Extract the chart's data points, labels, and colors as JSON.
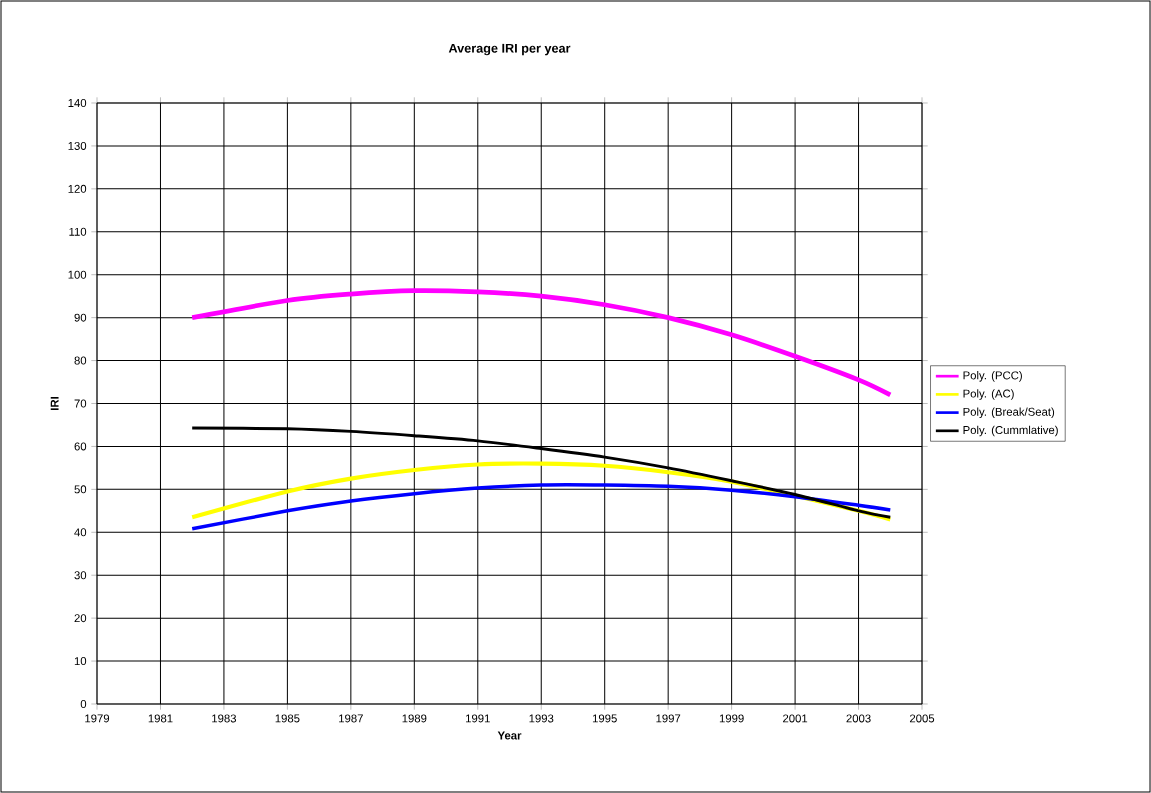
{
  "chart_data": {
    "type": "line",
    "title": "Average IRI per year",
    "xlabel": "Year",
    "ylabel": "IRI",
    "xlim": [
      1979,
      2005
    ],
    "xticks": [
      1979,
      1981,
      1983,
      1985,
      1987,
      1989,
      1991,
      1993,
      1995,
      1997,
      1999,
      2001,
      2003,
      2005
    ],
    "ylim": [
      0,
      140
    ],
    "yticks": [
      0,
      10,
      20,
      30,
      40,
      50,
      60,
      70,
      80,
      90,
      100,
      110,
      120,
      130,
      140
    ],
    "grid": true,
    "legend": "right",
    "line_style": "solid",
    "x": [
      1982,
      1985,
      1987,
      1989,
      1991,
      1993,
      1995,
      1997,
      1999,
      2001,
      2003,
      2004
    ],
    "series": [
      {
        "name": "Poly. (PCC)",
        "color": "#ff00ff",
        "values": [
          90,
          94,
          95.5,
          96.3,
          96,
          95,
          93,
          90,
          86,
          81,
          75.5,
          72
        ]
      },
      {
        "name": "Poly. (AC)",
        "color": "#ffff00",
        "values": [
          43.5,
          49.5,
          52.5,
          54.5,
          55.8,
          56,
          55.5,
          54,
          51.8,
          48.5,
          45,
          43
        ]
      },
      {
        "name": "Poly. (Break/Seat)",
        "color": "#0000ff",
        "values": [
          40.8,
          45,
          47.3,
          49,
          50.3,
          51,
          51,
          50.7,
          49.8,
          48.3,
          46.3,
          45.2
        ]
      },
      {
        "name": "Poly. (Cummlative)",
        "color": "#000000",
        "values": [
          64.3,
          64.1,
          63.5,
          62.5,
          61.3,
          59.5,
          57.5,
          55,
          52,
          48.8,
          45,
          43.5
        ]
      }
    ]
  }
}
